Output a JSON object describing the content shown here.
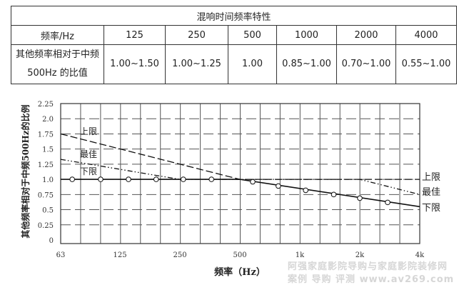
{
  "table": {
    "title": "混响时间频率特性",
    "header_label": "频率/Hz",
    "frequencies": [
      "125",
      "250",
      "500",
      "1000",
      "2000",
      "4000"
    ],
    "row_label": "其他频率相对于中频 500Hz 的比值",
    "ratios": [
      "1.00~1.50",
      "1.00~1.25",
      "1.00",
      "0.85~1.00",
      "0.70~1.00",
      "0.55~1.00"
    ]
  },
  "chart_data": {
    "type": "line",
    "xlabel": "频率（Hz）",
    "ylabel": "其他频率相对于中频500Hz的比例",
    "x_scale": "log2",
    "xlim": [
      63,
      4000
    ],
    "ylim": [
      0,
      2.25
    ],
    "grid": true,
    "x_ticks": [
      {
        "v": 63,
        "label": "63"
      },
      {
        "v": 125,
        "label": "125"
      },
      {
        "v": 250,
        "label": "250"
      },
      {
        "v": 500,
        "label": "500"
      },
      {
        "v": 1000,
        "label": "1k"
      },
      {
        "v": 2000,
        "label": "2k"
      },
      {
        "v": 4000,
        "label": "4k"
      }
    ],
    "y_ticks": [
      {
        "v": 0,
        "label": "0"
      },
      {
        "v": 0.25,
        "label": "0.25"
      },
      {
        "v": 0.5,
        "label": "0.5"
      },
      {
        "v": 0.75,
        "label": "0.75"
      },
      {
        "v": 1.0,
        "label": "1.0"
      },
      {
        "v": 1.25,
        "label": "1.25"
      },
      {
        "v": 1.5,
        "label": "1.5"
      },
      {
        "v": 1.75,
        "label": "1.75"
      },
      {
        "v": 2.0,
        "label": "2.0"
      },
      {
        "v": 2.25,
        "label": "2.25"
      }
    ],
    "series": [
      {
        "name": "上限",
        "style": "dashed",
        "x": [
          63,
          500,
          4000
        ],
        "y": [
          1.75,
          1.0,
          1.0
        ]
      },
      {
        "name": "最佳",
        "style": "dash-dot-dot",
        "x": [
          63,
          250,
          2000,
          4000
        ],
        "y": [
          1.33,
          1.0,
          1.0,
          0.75
        ]
      },
      {
        "name": "下限",
        "style": "solid",
        "x": [
          63,
          500,
          4000
        ],
        "y": [
          1.0,
          1.0,
          0.55
        ]
      }
    ],
    "markers": {
      "series": "下限",
      "x": [
        72,
        100,
        138,
        190,
        260,
        360,
        580,
        780,
        1070,
        1480,
        2000,
        2760
      ],
      "y": [
        1.0,
        1.0,
        1.0,
        1.0,
        1.0,
        1.0,
        0.96,
        0.89,
        0.82,
        0.75,
        0.69,
        0.62
      ]
    },
    "left_labels": [
      "上限",
      "最佳",
      "下限"
    ],
    "right_labels": [
      "上限",
      "最佳",
      "下限"
    ]
  },
  "watermark": {
    "line1": "阿强家庭影院导购与家庭影院装修网",
    "line2": "案例 导购 评测 www.av269.com"
  }
}
